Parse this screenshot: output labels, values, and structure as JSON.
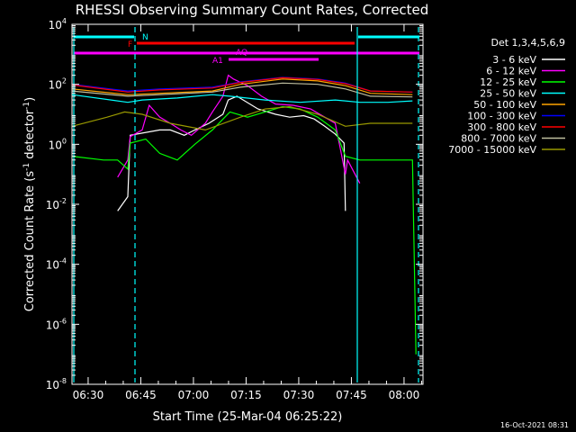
{
  "chart_data": {
    "type": "line",
    "title": "RHESSI Observing Summary Count Rates, Corrected",
    "xlabel": "Start Time (25-Mar-04 06:25:22)",
    "ylabel_main": "Corrected Count Rate (s",
    "ylabel_sup1": "-1",
    "ylabel_mid": " detector",
    "ylabel_sup2": "-1",
    "ylabel_end": ")",
    "x_unit": "minutes after 06:25:22",
    "xlim": [
      0,
      100
    ],
    "ylim": [
      1e-08,
      10000.0
    ],
    "yscale": "log",
    "x_ticks": [
      {
        "label": "06:30",
        "value": 4.6
      },
      {
        "label": "06:45",
        "value": 19.6
      },
      {
        "label": "07:00",
        "value": 34.6
      },
      {
        "label": "07:15",
        "value": 49.6
      },
      {
        "label": "07:30",
        "value": 64.6
      },
      {
        "label": "07:45",
        "value": 79.6
      },
      {
        "label": "08:00",
        "value": 94.6
      }
    ],
    "y_ticks": [
      {
        "base": "10",
        "exp": "4",
        "value": 10000.0
      },
      {
        "base": "10",
        "exp": "2",
        "value": 100.0
      },
      {
        "base": "10",
        "exp": "0",
        "value": 1
      },
      {
        "base": "10",
        "exp": "-2",
        "value": 0.01
      },
      {
        "base": "10",
        "exp": "-4",
        "value": 0.0001
      },
      {
        "base": "10",
        "exp": "-6",
        "value": 1e-06
      },
      {
        "base": "10",
        "exp": "-8",
        "value": 1e-08
      }
    ],
    "legend_title": "Det 1,3,4,5,6,9",
    "legend_position": "right",
    "series": [
      {
        "name": "3 - 6 keV",
        "color": "#ffffff",
        "points": [
          [
            13,
            0.006
          ],
          [
            15.9,
            0.018
          ],
          [
            16.6,
            2
          ],
          [
            25,
            3
          ],
          [
            28,
            3
          ],
          [
            32,
            2
          ],
          [
            35,
            3
          ],
          [
            39,
            5
          ],
          [
            43,
            10
          ],
          [
            44.5,
            30
          ],
          [
            47,
            40
          ],
          [
            53,
            15
          ],
          [
            58,
            10
          ],
          [
            62,
            8
          ],
          [
            66,
            9
          ],
          [
            69,
            7
          ],
          [
            72,
            4
          ],
          [
            75,
            2.2
          ],
          [
            77.5,
            1.1
          ],
          [
            77.9,
            0.006
          ]
        ]
      },
      {
        "name": "6 - 12 keV",
        "color": "#ff00ff",
        "points": [
          [
            13,
            0.08
          ],
          [
            15.9,
            0.3
          ],
          [
            16.6,
            1.8
          ],
          [
            20,
            3
          ],
          [
            22,
            20
          ],
          [
            25,
            8
          ],
          [
            28,
            5
          ],
          [
            31,
            3
          ],
          [
            34,
            2
          ],
          [
            38,
            5
          ],
          [
            40,
            12
          ],
          [
            43,
            40
          ],
          [
            44.5,
            200
          ],
          [
            46,
            150
          ],
          [
            50,
            90
          ],
          [
            54,
            40
          ],
          [
            58,
            22
          ],
          [
            63,
            20
          ],
          [
            68,
            15
          ],
          [
            72,
            8
          ],
          [
            75,
            5
          ],
          [
            77.9,
            0.1
          ],
          [
            78.5,
            0.3
          ],
          [
            82,
            0.05
          ]
        ]
      },
      {
        "name": "12 - 25 keV",
        "color": "#00ff00",
        "points": [
          [
            0,
            0.4
          ],
          [
            9,
            0.3
          ],
          [
            13,
            0.3
          ],
          [
            15.9,
            0.15
          ],
          [
            16.6,
            1.1
          ],
          [
            21,
            1.5
          ],
          [
            25,
            0.5
          ],
          [
            30,
            0.3
          ],
          [
            35,
            1
          ],
          [
            40,
            3
          ],
          [
            45,
            12
          ],
          [
            50,
            8
          ],
          [
            55,
            12
          ],
          [
            60,
            18
          ],
          [
            65,
            15
          ],
          [
            70,
            8
          ],
          [
            75,
            3
          ],
          [
            77.9,
            0.4
          ],
          [
            82,
            0.3
          ],
          [
            97,
            0.3
          ],
          [
            98,
            1e-07
          ]
        ]
      },
      {
        "name": "25 - 50 keV",
        "color": "#00ffff",
        "points": [
          [
            0,
            45
          ],
          [
            15.9,
            25
          ],
          [
            20,
            30
          ],
          [
            30,
            35
          ],
          [
            40,
            45
          ],
          [
            45,
            40
          ],
          [
            55,
            30
          ],
          [
            65,
            25
          ],
          [
            75,
            30
          ],
          [
            82,
            25
          ],
          [
            90,
            25
          ],
          [
            97,
            28
          ]
        ]
      },
      {
        "name": "50 - 100 keV",
        "color": "#ffa500",
        "points": [
          [
            0,
            70
          ],
          [
            15.9,
            45
          ],
          [
            25,
            50
          ],
          [
            40,
            60
          ],
          [
            48,
            100
          ],
          [
            60,
            150
          ],
          [
            70,
            130
          ],
          [
            77.9,
            90
          ],
          [
            85,
            50
          ],
          [
            97,
            45
          ]
        ]
      },
      {
        "name": "100 - 300 keV",
        "color": "#0000ff",
        "points": [
          [
            0,
            100
          ],
          [
            15.9,
            60
          ],
          [
            25,
            70
          ],
          [
            40,
            80
          ],
          [
            48,
            120
          ],
          [
            60,
            170
          ],
          [
            70,
            150
          ],
          [
            77.9,
            110
          ],
          [
            85,
            60
          ],
          [
            97,
            55
          ]
        ]
      },
      {
        "name": "300 - 800 keV",
        "color": "#ff0000",
        "points": [
          [
            0,
            95
          ],
          [
            15.9,
            55
          ],
          [
            25,
            65
          ],
          [
            40,
            75
          ],
          [
            48,
            115
          ],
          [
            60,
            165
          ],
          [
            70,
            145
          ],
          [
            77.9,
            105
          ],
          [
            85,
            60
          ],
          [
            97,
            55
          ]
        ]
      },
      {
        "name": "800 - 7000 keV",
        "color": "#c0c0a0",
        "points": [
          [
            0,
            60
          ],
          [
            15.9,
            40
          ],
          [
            25,
            45
          ],
          [
            40,
            55
          ],
          [
            48,
            80
          ],
          [
            60,
            110
          ],
          [
            70,
            100
          ],
          [
            77.9,
            70
          ],
          [
            85,
            40
          ],
          [
            97,
            38
          ]
        ]
      },
      {
        "name": "7000 - 15000 keV",
        "color": "#999900",
        "points": [
          [
            0,
            4
          ],
          [
            10,
            8
          ],
          [
            15,
            12
          ],
          [
            20,
            10
          ],
          [
            28,
            5
          ],
          [
            38,
            3
          ],
          [
            48,
            8
          ],
          [
            55,
            15
          ],
          [
            62,
            18
          ],
          [
            70,
            10
          ],
          [
            77.9,
            4
          ],
          [
            85,
            5
          ],
          [
            97,
            5
          ]
        ]
      }
    ],
    "annotations": [
      {
        "label": "N",
        "color": "#00ffff"
      },
      {
        "label": "F",
        "color": "#ff0000"
      },
      {
        "label": "AQ",
        "color": "#ff00ff"
      },
      {
        "label": "A1",
        "color": "#ff00ff"
      }
    ],
    "footer": "16-Oct-2021 08:31"
  }
}
